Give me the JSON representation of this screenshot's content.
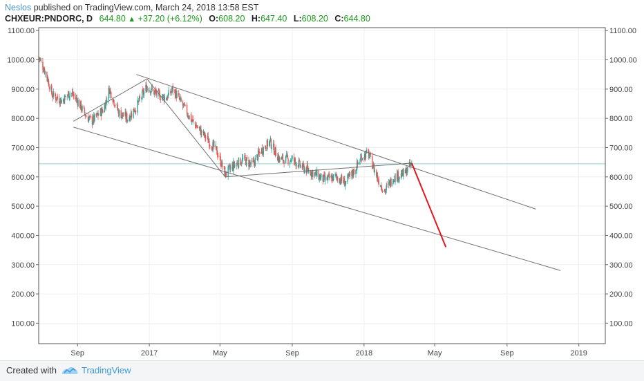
{
  "header": {
    "author": "Neslos",
    "published_text": "published on TradingView.com, March 24, 2018 13:58 EST",
    "symbol": "CHXEUR:PNDORC, D",
    "last": "644.80",
    "change": "+37.20 (+6.12%)",
    "open_label": "O:",
    "open": "608.20",
    "high_label": "H:",
    "high": "647.40",
    "low_label": "L:",
    "low": "608.20",
    "close_label": "C:",
    "close": "644.80"
  },
  "footer": {
    "created_with": "Created with",
    "brand": "TradingView"
  },
  "colors": {
    "up": "#26a69a",
    "down": "#ef5350",
    "trendline": "#6f6f6f",
    "forecast": "#e8141b",
    "price_line": "#8fd3d0"
  },
  "chart_data": {
    "type": "candlestick",
    "title": "",
    "xlabel": "",
    "ylabel": "",
    "x_tick_labels": [
      "Sep",
      "2017",
      "May",
      "Sep",
      "2018",
      "May",
      "Sep",
      "2019"
    ],
    "x_tick_dates": [
      "2016-09-01",
      "2017-01-01",
      "2017-05-01",
      "2017-09-01",
      "2018-01-01",
      "2018-05-01",
      "2018-09-01",
      "2019-01-01"
    ],
    "y_tick_labels": [
      "100.00",
      "200.00",
      "300.00",
      "400.00",
      "500.00",
      "600.00",
      "700.00",
      "800.00",
      "900.00",
      "1000.00",
      "1100.00"
    ],
    "ylim": [
      30,
      1110
    ],
    "xlim": [
      "2016-06-27",
      "2019-02-15"
    ],
    "grid": true,
    "current_price": 644.8,
    "price_path": [
      [
        "2016-06-27",
        1010
      ],
      [
        "2016-07-10",
        950
      ],
      [
        "2016-07-20",
        880
      ],
      [
        "2016-08-05",
        860
      ],
      [
        "2016-08-20",
        890
      ],
      [
        "2016-09-01",
        860
      ],
      [
        "2016-09-15",
        810
      ],
      [
        "2016-09-25",
        790
      ],
      [
        "2016-10-15",
        830
      ],
      [
        "2016-10-25",
        900
      ],
      [
        "2016-11-10",
        820
      ],
      [
        "2016-11-25",
        800
      ],
      [
        "2016-12-10",
        840
      ],
      [
        "2016-12-28",
        910
      ],
      [
        "2017-01-15",
        880
      ],
      [
        "2017-01-30",
        870
      ],
      [
        "2017-02-10",
        900
      ],
      [
        "2017-02-25",
        850
      ],
      [
        "2017-03-15",
        790
      ],
      [
        "2017-04-05",
        740
      ],
      [
        "2017-04-25",
        690
      ],
      [
        "2017-05-10",
        610
      ],
      [
        "2017-05-25",
        640
      ],
      [
        "2017-06-10",
        660
      ],
      [
        "2017-06-25",
        640
      ],
      [
        "2017-07-10",
        690
      ],
      [
        "2017-07-25",
        720
      ],
      [
        "2017-08-10",
        660
      ],
      [
        "2017-09-01",
        660
      ],
      [
        "2017-09-20",
        630
      ],
      [
        "2017-10-10",
        610
      ],
      [
        "2017-10-25",
        590
      ],
      [
        "2017-11-15",
        600
      ],
      [
        "2017-11-30",
        580
      ],
      [
        "2017-12-15",
        620
      ],
      [
        "2017-12-28",
        670
      ],
      [
        "2018-01-08",
        680
      ],
      [
        "2018-01-25",
        590
      ],
      [
        "2018-02-05",
        550
      ],
      [
        "2018-02-20",
        600
      ],
      [
        "2018-03-10",
        610
      ],
      [
        "2018-03-23",
        644.8
      ]
    ],
    "channel_upper": {
      "start": [
        "2016-12-10",
        950
      ],
      "end": [
        "2018-10-20",
        490
      ]
    },
    "channel_lower": {
      "start": [
        "2016-08-25",
        770
      ],
      "end": [
        "2018-12-01",
        280
      ]
    },
    "pattern_lines": [
      {
        "start": [
          "2016-08-25",
          790
        ],
        "end": [
          "2016-12-28",
          935
        ]
      },
      {
        "start": [
          "2016-12-28",
          935
        ],
        "end": [
          "2017-05-10",
          600
        ]
      },
      {
        "start": [
          "2017-05-10",
          600
        ],
        "end": [
          "2018-03-23",
          647
        ]
      }
    ],
    "forecast_line": {
      "start": [
        "2018-03-23",
        647
      ],
      "end": [
        "2018-05-20",
        360
      ]
    }
  }
}
